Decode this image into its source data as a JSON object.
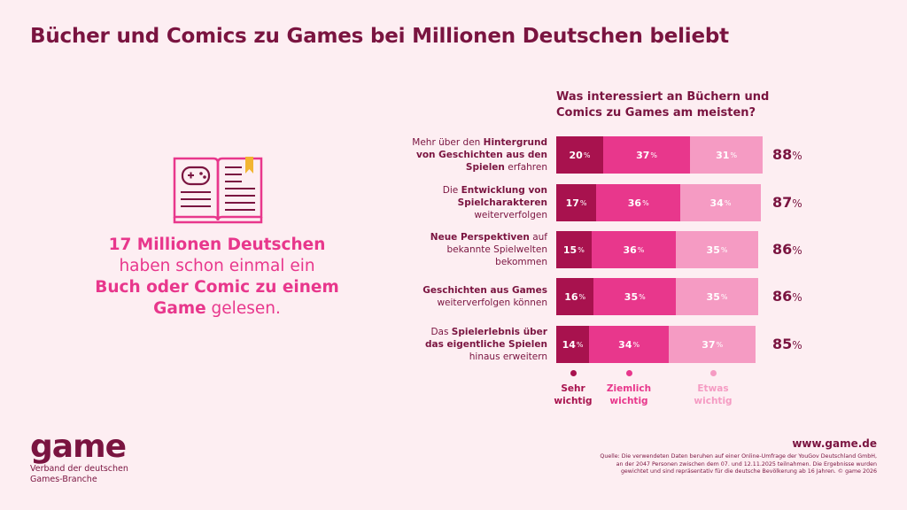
{
  "title": "Bücher und Comics zu Games bei Millionen Deutschen beliebt",
  "stat": {
    "line1_bold": "17 Millionen Deutschen",
    "line2": "haben schon einmal ein",
    "line3_bold": "Buch oder Comic zu einem",
    "line4_bold": "Game",
    "line4_rest": " gelesen."
  },
  "question": {
    "line1": "Was interessiert an Büchern und",
    "line2": "Comics zu Games am meisten?"
  },
  "colors": {
    "sehr": "#a8124e",
    "ziemlich": "#e8378c",
    "etwas": "#f59bc3",
    "text": "#7a1440",
    "background": "#fdeef2"
  },
  "icon": "book-with-gamepad-icon",
  "rows": [
    {
      "label_lines": [
        [
          {
            "t": "Mehr über den ",
            "b": false
          },
          {
            "t": "Hintergrund",
            "b": true
          }
        ],
        [
          {
            "t": "von Geschichten aus den",
            "b": true
          }
        ],
        [
          {
            "t": "Spielen",
            "b": true
          },
          {
            "t": " erfahren",
            "b": false
          }
        ]
      ]
    },
    {
      "label_lines": [
        [
          {
            "t": "Die ",
            "b": false
          },
          {
            "t": "Entwicklung von",
            "b": true
          }
        ],
        [
          {
            "t": "Spielcharakteren",
            "b": true
          }
        ],
        [
          {
            "t": "weiterverfolgen",
            "b": false
          }
        ]
      ]
    },
    {
      "label_lines": [
        [
          {
            "t": "Neue Perspektiven",
            "b": true
          },
          {
            "t": " auf",
            "b": false
          }
        ],
        [
          {
            "t": "bekannte Spielwelten",
            "b": false
          }
        ],
        [
          {
            "t": "bekommen",
            "b": false
          }
        ]
      ]
    },
    {
      "label_lines": [
        [
          {
            "t": "Geschichten aus Games",
            "b": true
          }
        ],
        [
          {
            "t": "weiterverfolgen können",
            "b": false
          }
        ]
      ]
    },
    {
      "label_lines": [
        [
          {
            "t": "Das ",
            "b": false
          },
          {
            "t": "Spielerlebnis über",
            "b": true
          }
        ],
        [
          {
            "t": "das eigentliche Spielen",
            "b": true
          }
        ],
        [
          {
            "t": "hinaus erweitern",
            "b": false
          }
        ]
      ]
    }
  ],
  "chart_data": {
    "type": "bar",
    "orientation": "horizontal",
    "stacked": true,
    "title": "Was interessiert an Büchern und Comics zu Games am meisten?",
    "categories": [
      "Mehr über den Hintergrund von Geschichten aus den Spielen erfahren",
      "Die Entwicklung von Spielcharakteren weiterverfolgen",
      "Neue Perspektiven auf bekannte Spielwelten bekommen",
      "Geschichten aus Games weiterverfolgen können",
      "Das Spielerlebnis über das eigentliche Spielen hinaus erweitern"
    ],
    "series": [
      {
        "name": "Sehr wichtig",
        "values": [
          20,
          17,
          15,
          16,
          14
        ]
      },
      {
        "name": "Ziemlich wichtig",
        "values": [
          37,
          36,
          36,
          35,
          34
        ]
      },
      {
        "name": "Etwas wichtig",
        "values": [
          31,
          34,
          35,
          35,
          37
        ]
      }
    ],
    "totals": [
      88,
      87,
      86,
      86,
      85
    ],
    "unit": "%",
    "legend": [
      {
        "line1": "Sehr",
        "line2": "wichtig"
      },
      {
        "line1": "Ziemlich",
        "line2": "wichtig"
      },
      {
        "line1": "Etwas",
        "line2": "wichtig"
      }
    ],
    "legend_position": "bottom"
  },
  "footer": {
    "logo": "game",
    "logo_sub_line1": "Verband der deutschen",
    "logo_sub_line2": "Games-Branche",
    "website": "www.game.de",
    "source_lines": [
      "Quelle: Die verwendeten Daten beruhen auf einer Online-Umfrage der YouGov Deutschland GmbH,",
      "an der 2047 Personen zwischen dem 07. und 12.11.2025 teilnahmen. Die Ergebnisse wurden",
      "gewichtet und sind repräsentativ für die deutsche Bevölkerung ab 16 Jahren. © game 2026"
    ]
  }
}
